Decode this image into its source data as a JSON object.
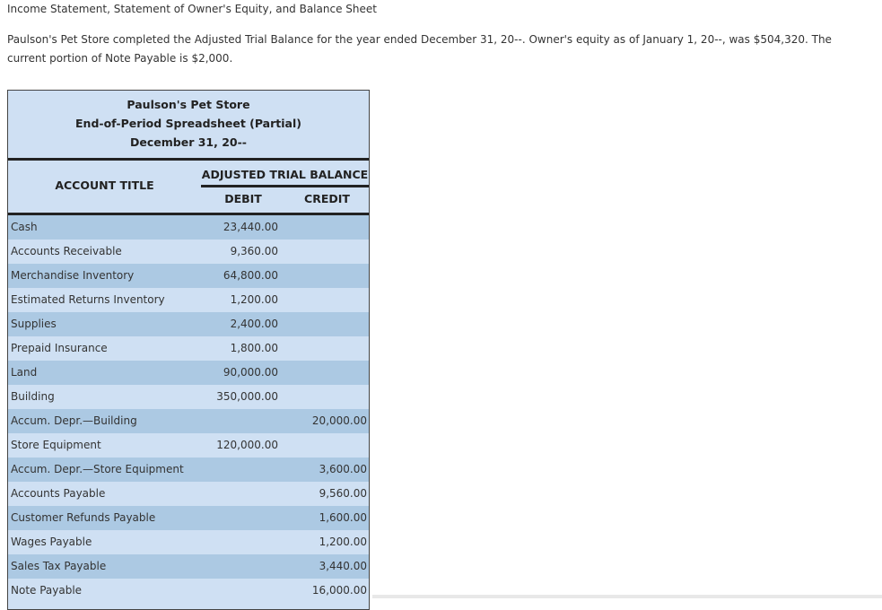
{
  "page": {
    "heading": "Income Statement, Statement of Owner's Equity, and Balance Sheet",
    "intro": "Paulson's Pet Store completed the Adjusted Trial Balance for the year ended December 31, 20--. Owner's equity as of January 1, 20--, was $504,320. The current portion of Note Payable is $2,000."
  },
  "sheet": {
    "company": "Paulson's Pet Store",
    "title": "End-of-Period Spreadsheet (Partial)",
    "date": "December 31, 20--",
    "account_title_header": "ACCOUNT TITLE",
    "atb_header": "ADJUSTED TRIAL BALANCE",
    "debit_header": "DEBIT",
    "credit_header": "CREDIT",
    "rows": [
      {
        "account": "Cash",
        "debit": "23,440.00",
        "credit": ""
      },
      {
        "account": "Accounts Receivable",
        "debit": "9,360.00",
        "credit": ""
      },
      {
        "account": "Merchandise Inventory",
        "debit": "64,800.00",
        "credit": ""
      },
      {
        "account": "Estimated Returns Inventory",
        "debit": "1,200.00",
        "credit": ""
      },
      {
        "account": "Supplies",
        "debit": "2,400.00",
        "credit": ""
      },
      {
        "account": "Prepaid Insurance",
        "debit": "1,800.00",
        "credit": ""
      },
      {
        "account": "Land",
        "debit": "90,000.00",
        "credit": ""
      },
      {
        "account": "Building",
        "debit": "350,000.00",
        "credit": ""
      },
      {
        "account": "Accum. Depr.—Building",
        "debit": "",
        "credit": "20,000.00"
      },
      {
        "account": "Store Equipment",
        "debit": "120,000.00",
        "credit": ""
      },
      {
        "account": "Accum. Depr.—Store Equipment",
        "debit": "",
        "credit": "3,600.00"
      },
      {
        "account": "Accounts Payable",
        "debit": "",
        "credit": "9,560.00"
      },
      {
        "account": "Customer Refunds Payable",
        "debit": "",
        "credit": "1,600.00"
      },
      {
        "account": "Wages Payable",
        "debit": "",
        "credit": "1,200.00"
      },
      {
        "account": "Sales Tax Payable",
        "debit": "",
        "credit": "3,440.00"
      },
      {
        "account": "Note Payable",
        "debit": "",
        "credit": "16,000.00"
      }
    ]
  }
}
